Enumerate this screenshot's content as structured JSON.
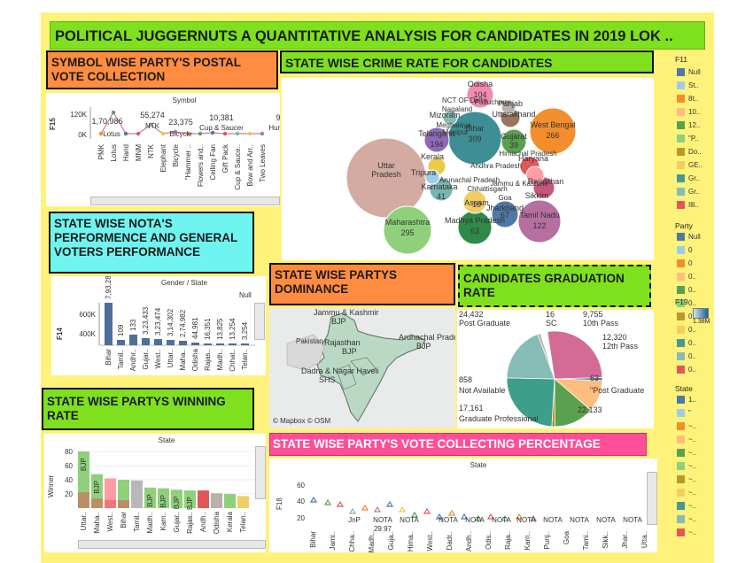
{
  "main_title": "POLITICAL JUGGERNUTS A QUANTITATIVE ANALYSIS FOR CANDIDATES IN 2019 LOK ..",
  "colors": {
    "green_title": "#7fe01e",
    "orange_title": "#ff8c40",
    "cyan_title": "#6ff5f0",
    "pink_title": "#ff4f98",
    "yellow_bg": "#fff27a"
  },
  "postal": {
    "title": "SYMBOL WISE PARTY'S POSTAL VOTE COLLECTION",
    "header": "Symbol",
    "y_label": "F15",
    "y_ticks": [
      "120K",
      "0K"
    ],
    "value_labels": [
      "1,70,986",
      "55,274",
      "23,375",
      "10,381",
      "9"
    ],
    "point_labels": [
      "Lotus",
      "NTK",
      "Bicycle",
      "Cup & Saucer",
      "Hurric"
    ],
    "categories": [
      "PMK",
      "Lotus",
      "Hand",
      "MNM",
      "NTK",
      "Elephant",
      "Bicycle",
      "\"Hammer ..",
      "Flowers and..",
      "Ceiling Fan",
      "Gift Pack",
      "Cup & Sauce..",
      "Bow and Arr..",
      "Two Leaves"
    ]
  },
  "crime": {
    "title": "STATE WISE CRIME RATE FOR CANDIDATES",
    "bubbles": [
      {
        "name": "Uttar Pradesh",
        "value": "",
        "color": "#d4aba0"
      },
      {
        "name": "Maharashtra",
        "value": "295",
        "color": "#8fd17a"
      },
      {
        "name": "Bihar",
        "value": "309",
        "color": "#3d8f95"
      },
      {
        "name": "West Bengal",
        "value": "266",
        "color": "#f28e2b"
      },
      {
        "name": "Tamil Nadu",
        "value": "122",
        "color": "#b56fa0"
      },
      {
        "name": "Odisha",
        "value": "104",
        "color": "#f28bb0"
      },
      {
        "name": "Telangana",
        "value": "194",
        "color": "#8c6ab8"
      },
      {
        "name": "Gujarat",
        "value": "39",
        "color": "#59a14f"
      },
      {
        "name": "Madhya Pradesh",
        "value": "63",
        "color": "#2f8a4a"
      },
      {
        "name": "Jharkhand",
        "value": "67",
        "color": "#4e79a7"
      },
      {
        "name": "Rajasthan",
        "value": "",
        "color": "#c8557a"
      },
      {
        "name": "Haryana",
        "value": "",
        "color": "#e15759"
      },
      {
        "name": "Karnataka",
        "value": "41",
        "color": "#76b7b2"
      },
      {
        "name": "Uttarakhand",
        "value": "",
        "color": "#9c755f"
      },
      {
        "name": "Sikkim",
        "value": "",
        "color": "#ff9da7"
      },
      {
        "name": "Kerala",
        "value": "",
        "color": "#edc948"
      },
      {
        "name": "Punjab",
        "value": "",
        "color": "#bab0ac"
      },
      {
        "name": "Assam",
        "value": "10",
        "color": "#f1ce63"
      },
      {
        "name": "Mizoram",
        "value": "",
        "color": "#86bcb6"
      },
      {
        "name": "Tripura",
        "value": "",
        "color": "#a0cbe8"
      }
    ],
    "extra_labels": [
      "NCT OF Delhi",
      "Nagaland",
      "Meghalaya",
      "Manipur",
      "Chhattisgarh",
      "Arunachal Pradesh",
      "Puducherry",
      "Jammu & Kashmir",
      "Andhra Pradesh",
      "Himachal Pradesh",
      "Goa"
    ]
  },
  "nota": {
    "title": "STATE WISE NOTA'S PERFORMENCE AND GENERAL VOTERS PERFORMANCE",
    "header": "Gender / State",
    "null_label": "Null",
    "y_label": "F14",
    "y_ticks": [
      "600K",
      "400K"
    ],
    "values": [
      "7,93,285",
      "109",
      "133",
      "3,23,433",
      "3,23,474",
      "3,14,302",
      "2,74,982",
      "44,981",
      "16,351",
      "13,825",
      "13,254",
      "3,254"
    ],
    "categories": [
      "Bihar",
      "Tamil..",
      "Andhr..",
      "Gujar..",
      "West..",
      "Uttar..",
      "Maha..",
      "Odisha",
      "Rajas..",
      "Madh..",
      "Chhat..",
      "Telan.."
    ]
  },
  "dominance": {
    "title": "STATE WISE PARTYS DOMINANCE",
    "labels": [
      {
        "text": "Jammu & Kashmir",
        "sub": "BJP"
      },
      {
        "text": "Rajasthan",
        "sub": "BJP"
      },
      {
        "text": "Arunachal Prades..",
        "sub": "BJP"
      },
      {
        "text": "Dadra & Nagar Haveli",
        "sub": "SHS"
      }
    ],
    "credit": "© Mapbox © OSM",
    "pakistan": "Pakistan"
  },
  "graduation": {
    "title": "CANDIDATES GRADUATION RATE",
    "slices": [
      {
        "label": "Post Graduate",
        "value": "24,432",
        "color": "#d36b95",
        "frac": 0.2695
      },
      {
        "label": "SC",
        "value": "16",
        "color": "#4e79a7",
        "frac": 0.01
      },
      {
        "label": "10th Pass",
        "value": "9,755",
        "color": "#ffbe7d",
        "frac": 0.1076
      },
      {
        "label": "12th Pass",
        "value": "12,320",
        "color": "#59a14f",
        "frac": 0.1359
      },
      {
        "label": "\"Post Graduate",
        "value": "63",
        "color": "#b8860b",
        "frac": 0.01
      },
      {
        "label": "",
        "value": "22,133",
        "color": "#3d9e8a",
        "frac": 0.2441
      },
      {
        "label": "Graduate Professional",
        "value": "17,161",
        "color": "#86bcb6",
        "frac": 0.1893
      },
      {
        "label": "Not Available",
        "value": "858",
        "color": "#bab0ac",
        "frac": 0.0095
      }
    ]
  },
  "winning": {
    "title": "STATE WISE PARTYS WINNING RATE",
    "header": "State",
    "y_label": "Winner",
    "y_ticks": [
      "80",
      "60",
      "40",
      "20"
    ],
    "categories": [
      "Uttar..",
      "Maha..",
      "West..",
      "Bihar",
      "Tamil..",
      "Madh..",
      "Karn..",
      "Gujar..",
      "Rajas..",
      "Andh..",
      "Odisha",
      "Kerala",
      "Telan.."
    ],
    "values": [
      80,
      48,
      42,
      40,
      39,
      29,
      28,
      26,
      25,
      25,
      21,
      20,
      17
    ],
    "party_labels": [
      "BJP",
      "BJP",
      "",
      "",
      "",
      "BJP",
      "BJP",
      "BJP",
      "BJP",
      "",
      "",
      "",
      ""
    ],
    "colors": [
      "#8fd17a",
      "#8fd17a",
      "#ff9da7",
      "#8fd17a",
      "#b8b8b8",
      "#8fd17a",
      "#8fd17a",
      "#8fd17a",
      "#8fd17a",
      "#e15759",
      "#bab0ac",
      "#8fd17a",
      "#f1ce63"
    ]
  },
  "vote_pct": {
    "title": "STATE WISE PARTY'S VOTE COLLECTING PERCENTAGE",
    "header": "State",
    "y_label": "F18",
    "y_ticks": [
      "60",
      "40",
      "20"
    ],
    "point_labels": [
      "JnP",
      "NOTA",
      "NOTA",
      "NOTA",
      "NOTA",
      "NOTA",
      "NOTA",
      "NOTA",
      "NOTA",
      "NOTA",
      "NOTA"
    ],
    "sub_value": "29.97",
    "categories": [
      "Bihar",
      "Jami..",
      "Chha..",
      "Madh..",
      "Guja..",
      "Hima..",
      "West..",
      "Dadr..",
      "Andh..",
      "Odis..",
      "Raja..",
      "Karn..",
      "Punj..",
      "Goa",
      "Tami..",
      "Sikk..",
      "Jhar..",
      "Utta.."
    ]
  },
  "legend": {
    "f11_title": "F11",
    "f11_items": [
      {
        "label": "Null",
        "color": "#4e79a7"
      },
      {
        "label": "St..",
        "color": "#a0cbe8"
      },
      {
        "label": "8t..",
        "color": "#f28e2b"
      },
      {
        "label": "10..",
        "color": "#ffbe7d"
      },
      {
        "label": "12..",
        "color": "#59a14f"
      },
      {
        "label": "\"P..",
        "color": "#8cd17d"
      },
      {
        "label": "Do..",
        "color": "#b6992d"
      },
      {
        "label": "GE..",
        "color": "#f1ce63"
      },
      {
        "label": "Gr..",
        "color": "#499894"
      },
      {
        "label": "Gr..",
        "color": "#86bcb6"
      },
      {
        "label": "Illi..",
        "color": "#e15759"
      }
    ],
    "party_title": "Party",
    "party_items": [
      {
        "label": "Null",
        "color": "#4e79a7"
      },
      {
        "label": "0",
        "color": "#a0cbe8"
      },
      {
        "label": "0",
        "color": "#f28e2b"
      },
      {
        "label": "0..",
        "color": "#ffbe7d"
      },
      {
        "label": "0..",
        "color": "#59a14f"
      },
      {
        "label": "0..",
        "color": "#8cd17d"
      },
      {
        "label": "0..",
        "color": "#b6992d"
      },
      {
        "label": "0..",
        "color": "#f1ce63"
      },
      {
        "label": "0..",
        "color": "#499894"
      },
      {
        "label": "0..",
        "color": "#86bcb6"
      },
      {
        "label": "0..",
        "color": "#e15759"
      }
    ],
    "f19_title": "F19",
    "f19_min": "",
    "f19_max": "1.38M",
    "state_title": "State",
    "state_items": [
      {
        "label": "1..",
        "color": "#4e79a7"
      },
      {
        "label": "\"",
        "color": "#a0cbe8"
      },
      {
        "label": "~..",
        "color": "#f28e2b"
      },
      {
        "label": "~..",
        "color": "#ffbe7d"
      },
      {
        "label": "~..",
        "color": "#59a14f"
      },
      {
        "label": "~..",
        "color": "#8cd17d"
      },
      {
        "label": "~..",
        "color": "#b6992d"
      },
      {
        "label": "~..",
        "color": "#f1ce63"
      },
      {
        "label": "~..",
        "color": "#499894"
      },
      {
        "label": "~..",
        "color": "#86bcb6"
      },
      {
        "label": "~..",
        "color": "#e15759"
      }
    ]
  }
}
